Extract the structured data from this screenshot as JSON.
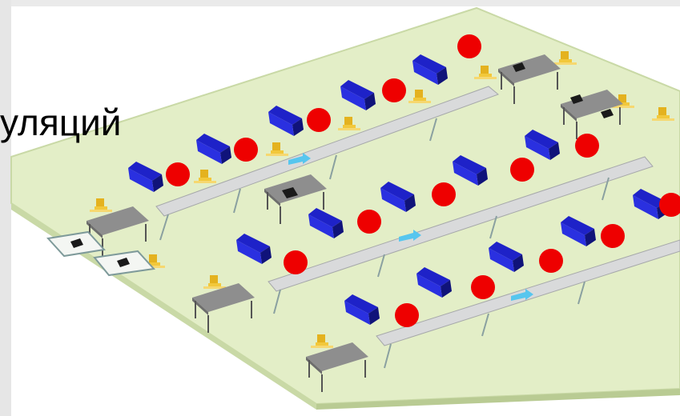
{
  "slide": {
    "title_fragment": "уляций"
  },
  "illustration": {
    "type": "isometric-workshop-floor-plan",
    "colors": {
      "floor": "#e3eec7",
      "floor_edge": "#c9d9a6",
      "seats": "#1e22c8",
      "seat_shadow": "#10137a",
      "markers": "#ee0000",
      "chairs": "#e4b21f",
      "desks": "#8e8e8e",
      "conveyor": "#d9dadb",
      "arrows": "#57c6ee"
    },
    "marker_count": 17,
    "icons": [
      "seat-icon",
      "chair-icon",
      "desk-icon",
      "monitor-icon",
      "arrow-icon"
    ]
  }
}
